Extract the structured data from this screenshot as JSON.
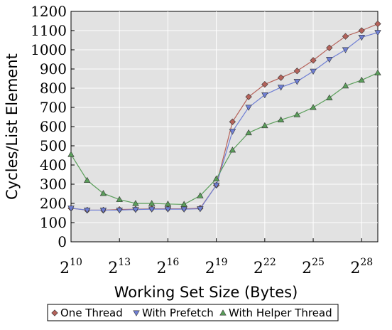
{
  "chart_data": {
    "type": "line",
    "xlabel": "Working Set Size (Bytes)",
    "ylabel": "Cycles/List Element",
    "x_scale": "log2",
    "x_exponents": [
      10,
      11,
      12,
      13,
      14,
      15,
      16,
      17,
      18,
      19,
      20,
      21,
      22,
      23,
      24,
      25,
      26,
      27,
      28,
      29
    ],
    "x_ticks": [
      10,
      13,
      16,
      19,
      22,
      25,
      28
    ],
    "x_tick_base": "2",
    "xlim_exponent": [
      10,
      29
    ],
    "ylim": [
      0,
      1200
    ],
    "y_ticks": [
      0,
      100,
      200,
      300,
      400,
      500,
      600,
      700,
      800,
      900,
      1000,
      1100,
      1200
    ],
    "grid": true,
    "legend_position": "bottom",
    "background_color": "#e2e2e2",
    "series": [
      {
        "name": "One Thread",
        "color": "#b5625a",
        "marker": "diamond",
        "values": [
          175,
          165,
          165,
          168,
          170,
          172,
          172,
          172,
          175,
          295,
          625,
          755,
          820,
          855,
          890,
          945,
          1010,
          1070,
          1100,
          1135
        ]
      },
      {
        "name": "With Prefetch",
        "color": "#6f7fd4",
        "marker": "triangle-down",
        "values": [
          175,
          165,
          165,
          165,
          168,
          170,
          170,
          170,
          172,
          295,
          575,
          700,
          765,
          805,
          835,
          888,
          950,
          1000,
          1065,
          1090
        ]
      },
      {
        "name": "With Helper Thread",
        "color": "#5a9e5a",
        "marker": "triangle-up",
        "values": [
          455,
          320,
          252,
          220,
          200,
          200,
          197,
          195,
          240,
          328,
          478,
          568,
          605,
          635,
          662,
          700,
          750,
          812,
          842,
          880
        ]
      }
    ]
  }
}
